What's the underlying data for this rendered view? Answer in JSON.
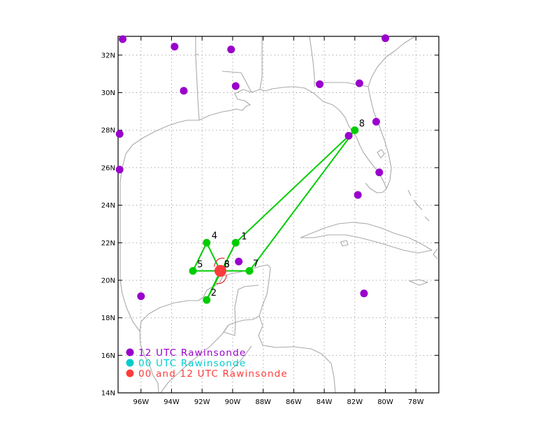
{
  "map": {
    "lon_range": [
      -97.5,
      -76.5
    ],
    "lat_range": [
      14,
      33
    ],
    "lon_ticks": [
      {
        "value": -96,
        "label": "96W"
      },
      {
        "value": -94,
        "label": "94W"
      },
      {
        "value": -92,
        "label": "92W"
      },
      {
        "value": -90,
        "label": "90W"
      },
      {
        "value": -88,
        "label": "88W"
      },
      {
        "value": -86,
        "label": "86W"
      },
      {
        "value": -84,
        "label": "84W"
      },
      {
        "value": -82,
        "label": "82W"
      },
      {
        "value": -80,
        "label": "80W"
      },
      {
        "value": -78,
        "label": "78W"
      }
    ],
    "lat_ticks": [
      {
        "value": 14,
        "label": "14N"
      },
      {
        "value": 16,
        "label": "16N"
      },
      {
        "value": 18,
        "label": "18N"
      },
      {
        "value": 20,
        "label": "20N"
      },
      {
        "value": 22,
        "label": "22N"
      },
      {
        "value": 24,
        "label": "24N"
      },
      {
        "value": 26,
        "label": "26N"
      },
      {
        "value": 28,
        "label": "28N"
      },
      {
        "value": 30,
        "label": "30N"
      },
      {
        "value": 32,
        "label": "32N"
      }
    ],
    "grid": "dotted",
    "colors": {
      "coastline": "#aaaaaa",
      "grid": "#999999",
      "rawinsonde_12utc": "#9a00cc",
      "rawinsonde_00utc": "#00cccc",
      "rawinsonde_both": "#ff3c3c",
      "flight_track": "#00cc00"
    }
  },
  "rawinsondes_12utc": [
    {
      "lon": -97.2,
      "lat": 32.85
    },
    {
      "lon": -93.8,
      "lat": 32.45
    },
    {
      "lon": -90.1,
      "lat": 32.3
    },
    {
      "lon": -80.0,
      "lat": 32.9
    },
    {
      "lon": -93.2,
      "lat": 30.1
    },
    {
      "lon": -89.8,
      "lat": 30.35
    },
    {
      "lon": -84.3,
      "lat": 30.45
    },
    {
      "lon": -81.7,
      "lat": 30.5
    },
    {
      "lon": -97.4,
      "lat": 27.8
    },
    {
      "lon": -80.6,
      "lat": 28.45
    },
    {
      "lon": -82.4,
      "lat": 27.7
    },
    {
      "lon": -97.4,
      "lat": 25.9
    },
    {
      "lon": -80.4,
      "lat": 25.75
    },
    {
      "lon": -81.8,
      "lat": 24.55
    },
    {
      "lon": -89.6,
      "lat": 21.0
    },
    {
      "lon": -96.0,
      "lat": 19.15
    },
    {
      "lon": -81.4,
      "lat": 19.3
    }
  ],
  "rawinsonde_both": {
    "lon": -90.8,
    "lat": 20.5
  },
  "storm_symbol": {
    "lon": -90.8,
    "lat": 20.5
  },
  "flight_points": [
    {
      "id": "1",
      "lon": -89.8,
      "lat": 22.0
    },
    {
      "id": "2",
      "lon": -91.7,
      "lat": 18.95
    },
    {
      "id": "3",
      "lon": -90.8,
      "lat": 20.5
    },
    {
      "id": "4",
      "lon": -91.7,
      "lat": 22.0
    },
    {
      "id": "5",
      "lon": -92.6,
      "lat": 20.5
    },
    {
      "id": "6",
      "lon": -90.8,
      "lat": 20.5
    },
    {
      "id": "7",
      "lon": -88.9,
      "lat": 20.5
    },
    {
      "id": "8",
      "lon": -82.0,
      "lat": 28.0
    }
  ],
  "flight_track": [
    "8",
    "1",
    "2",
    "3",
    "4",
    "5",
    "6",
    "7",
    "8"
  ],
  "legend": [
    {
      "label": "12 UTC Rawinsonde",
      "color_key": "rawinsonde_12utc"
    },
    {
      "label": "00 UTC Rawinsonde",
      "color_key": "rawinsonde_00utc"
    },
    {
      "label": "00 and 12 UTC Rawinsonde",
      "color_key": "rawinsonde_both"
    }
  ]
}
